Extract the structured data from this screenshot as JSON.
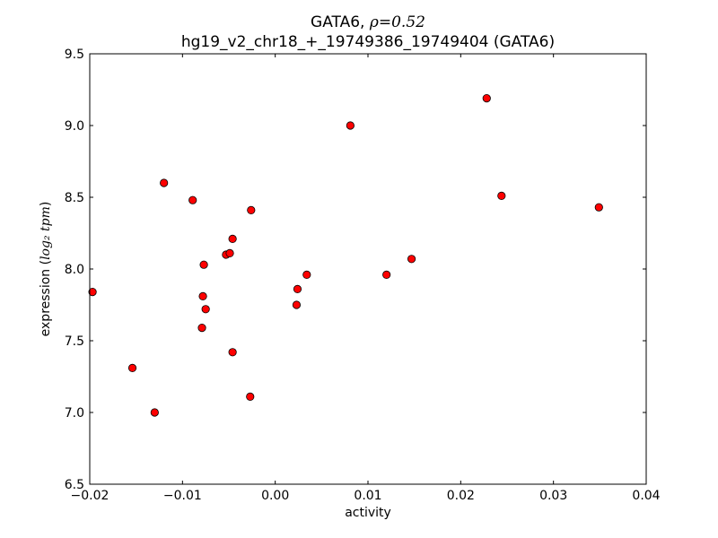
{
  "chart_data": {
    "type": "scatter",
    "title_line1_prefix": "GATA6, ",
    "title_line1_math": "ρ=0.52",
    "title_line2": "hg19_v2_chr18_+_19749386_19749404 (GATA6)",
    "xlabel": "activity",
    "ylabel_prefix": "expression (",
    "ylabel_math": "log₂ tpm",
    "ylabel_suffix": ")",
    "xlim": [
      -0.02,
      0.04
    ],
    "ylim": [
      6.5,
      9.5
    ],
    "xticks": [
      -0.02,
      -0.01,
      0.0,
      0.01,
      0.02,
      0.03,
      0.04
    ],
    "xtick_labels": [
      "−0.02",
      "−0.01",
      "0.00",
      "0.01",
      "0.02",
      "0.03",
      "0.04"
    ],
    "yticks": [
      6.5,
      7.0,
      7.5,
      8.0,
      8.5,
      9.0,
      9.5
    ],
    "ytick_labels": [
      "6.5",
      "7.0",
      "7.5",
      "8.0",
      "8.5",
      "9.0",
      "9.5"
    ],
    "grid": false,
    "marker_color": "#ff0000",
    "marker_edge": "#000000",
    "points": [
      {
        "x": -0.0197,
        "y": 7.84
      },
      {
        "x": -0.0154,
        "y": 7.31
      },
      {
        "x": -0.013,
        "y": 7.0
      },
      {
        "x": -0.012,
        "y": 8.6
      },
      {
        "x": -0.0089,
        "y": 8.48
      },
      {
        "x": -0.0079,
        "y": 7.59
      },
      {
        "x": -0.0078,
        "y": 7.81
      },
      {
        "x": -0.0077,
        "y": 8.03
      },
      {
        "x": -0.0075,
        "y": 7.72
      },
      {
        "x": -0.0053,
        "y": 8.1
      },
      {
        "x": -0.0049,
        "y": 8.11
      },
      {
        "x": -0.0046,
        "y": 8.21
      },
      {
        "x": -0.0046,
        "y": 7.42
      },
      {
        "x": -0.0027,
        "y": 7.11
      },
      {
        "x": -0.0026,
        "y": 8.41
      },
      {
        "x": 0.0023,
        "y": 7.75
      },
      {
        "x": 0.0024,
        "y": 7.86
      },
      {
        "x": 0.0034,
        "y": 7.96
      },
      {
        "x": 0.0081,
        "y": 9.0
      },
      {
        "x": 0.012,
        "y": 7.96
      },
      {
        "x": 0.0147,
        "y": 8.07
      },
      {
        "x": 0.0228,
        "y": 9.19
      },
      {
        "x": 0.0244,
        "y": 8.51
      },
      {
        "x": 0.0349,
        "y": 8.43
      }
    ]
  }
}
